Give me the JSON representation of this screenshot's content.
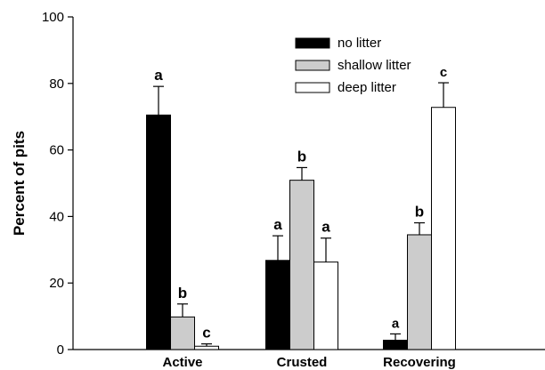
{
  "chart_data": {
    "type": "bar",
    "title": "",
    "xlabel": "",
    "ylabel": "Percent of pits",
    "ylim": [
      0,
      100
    ],
    "yticks": [
      0,
      20,
      40,
      60,
      80,
      100
    ],
    "categories": [
      "Active",
      "Crusted",
      "Recovering"
    ],
    "legend_position": "top-center",
    "grid": false,
    "series": [
      {
        "name": "no litter",
        "color": "#000000",
        "values": [
          70.5,
          26.8,
          2.8
        ],
        "errors": [
          8.6,
          7.4,
          1.9
        ],
        "significance": [
          "a",
          "a",
          "a"
        ]
      },
      {
        "name": "shallow litter",
        "color": "#cccccc",
        "values": [
          9.8,
          50.9,
          34.5
        ],
        "errors": [
          3.9,
          3.8,
          3.6
        ],
        "significance": [
          "b",
          "b",
          "b"
        ]
      },
      {
        "name": "deep litter",
        "color": "#ffffff",
        "values": [
          1.0,
          26.3,
          72.8
        ],
        "errors": [
          0.7,
          7.2,
          7.4
        ],
        "significance": [
          "c",
          "a",
          "c"
        ]
      }
    ]
  }
}
